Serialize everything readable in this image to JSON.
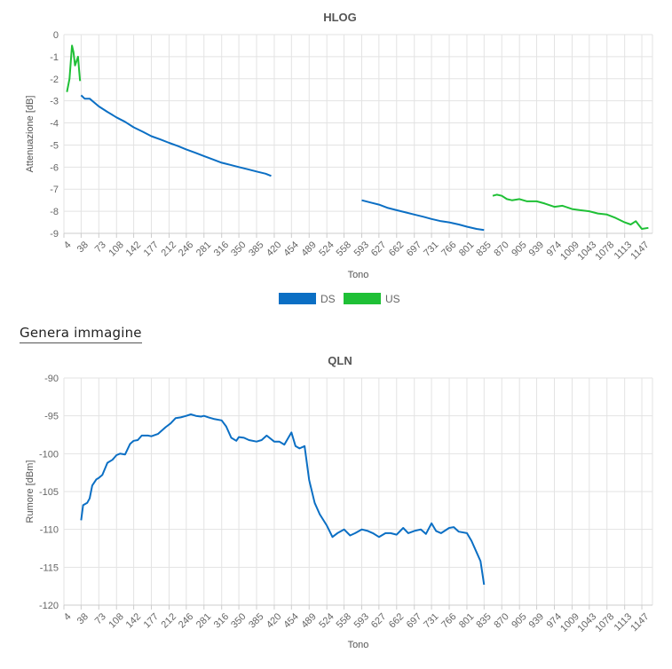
{
  "generate_image_label": "Genera immagine",
  "colors": {
    "ds": "#0b6fc4",
    "us": "#1fc036",
    "grid": "#e3e3e3",
    "text": "#666666"
  },
  "x_ticks": [
    "4",
    "38",
    "73",
    "108",
    "142",
    "177",
    "212",
    "246",
    "281",
    "316",
    "350",
    "385",
    "420",
    "454",
    "489",
    "524",
    "558",
    "593",
    "627",
    "662",
    "697",
    "731",
    "766",
    "801",
    "835",
    "870",
    "905",
    "939",
    "974",
    "1009",
    "1043",
    "1078",
    "1113",
    "1147"
  ],
  "chart_data": [
    {
      "type": "line",
      "title": "HLOG",
      "xlabel": "Tono",
      "ylabel": "Attenuazione [dB]",
      "xlim": [
        4,
        1168
      ],
      "ylim": [
        -9,
        0
      ],
      "yticks": [
        0,
        -1,
        -2,
        -3,
        -4,
        -5,
        -6,
        -7,
        -8,
        -9
      ],
      "legend": "bottom",
      "series": [
        {
          "name": "DS",
          "color": "#0b6fc4",
          "segments": [
            {
              "x": [
                38,
                45,
                55,
                73,
                90,
                108,
                125,
                142,
                160,
                177,
                195,
                212,
                230,
                246,
                264,
                281,
                298,
                316,
                333,
                350,
                368,
                385,
                403,
                414
              ],
              "y": [
                -2.75,
                -2.9,
                -2.9,
                -3.25,
                -3.5,
                -3.75,
                -3.95,
                -4.2,
                -4.4,
                -4.6,
                -4.75,
                -4.9,
                -5.05,
                -5.2,
                -5.35,
                -5.5,
                -5.65,
                -5.8,
                -5.9,
                -6.0,
                -6.1,
                -6.2,
                -6.3,
                -6.4
              ]
            },
            {
              "x": [
                593,
                610,
                627,
                645,
                662,
                680,
                697,
                715,
                731,
                750,
                766,
                785,
                801,
                820,
                835
              ],
              "y": [
                -7.5,
                -7.6,
                -7.7,
                -7.85,
                -7.95,
                -8.05,
                -8.15,
                -8.25,
                -8.35,
                -8.45,
                -8.5,
                -8.6,
                -8.7,
                -8.8,
                -8.85
              ]
            }
          ]
        },
        {
          "name": "US",
          "color": "#1fc036",
          "segments": [
            {
              "x": [
                10,
                15,
                20,
                23,
                26,
                29,
                32,
                34,
                36
              ],
              "y": [
                -2.6,
                -2.0,
                -0.5,
                -0.8,
                -1.4,
                -1.2,
                -1.0,
                -1.6,
                -2.1
              ]
            },
            {
              "x": [
                852,
                860,
                870,
                880,
                890,
                905,
                920,
                939,
                955,
                974,
                990,
                1009,
                1025,
                1043,
                1060,
                1078,
                1095,
                1113,
                1125,
                1135,
                1147,
                1160
              ],
              "y": [
                -7.3,
                -7.25,
                -7.3,
                -7.45,
                -7.5,
                -7.45,
                -7.55,
                -7.55,
                -7.65,
                -7.8,
                -7.75,
                -7.9,
                -7.95,
                -8.0,
                -8.1,
                -8.15,
                -8.3,
                -8.5,
                -8.6,
                -8.45,
                -8.8,
                -8.75
              ]
            }
          ]
        }
      ]
    },
    {
      "type": "line",
      "title": "QLN",
      "xlabel": "Tono",
      "ylabel": "Rumore [dBm]",
      "xlim": [
        4,
        1168
      ],
      "ylim": [
        -120,
        -90
      ],
      "yticks": [
        -90,
        -95,
        -100,
        -105,
        -110,
        -115,
        -120
      ],
      "series": [
        {
          "name": "",
          "color": "#0b6fc4",
          "segments": [
            {
              "x": [
                38,
                42,
                50,
                55,
                60,
                68,
                73,
                80,
                90,
                100,
                108,
                115,
                125,
                135,
                142,
                150,
                158,
                170,
                177,
                190,
                205,
                215,
                225,
                235,
                246,
                255,
                265,
                275,
                281,
                290,
                300,
                316,
                325,
                335,
                345,
                350,
                360,
                370,
                385,
                395,
                405,
                420,
                430,
                440,
                454,
                462,
                470,
                480,
                489,
                500,
                510,
                524,
                535,
                545,
                558,
                570,
                580,
                593,
                605,
                615,
                627,
                640,
                650,
                662,
                675,
                685,
                697,
                710,
                720,
                731,
                740,
                750,
                766,
                775,
                785,
                801,
                810,
                820,
                828,
                835
              ],
              "y": [
                -108.8,
                -106.8,
                -106.5,
                -105.9,
                -104.2,
                -103.4,
                -103.2,
                -102.8,
                -101.2,
                -100.8,
                -100.2,
                -100.0,
                -100.1,
                -98.7,
                -98.3,
                -98.2,
                -97.6,
                -97.6,
                -97.7,
                -97.4,
                -96.5,
                -96.0,
                -95.3,
                -95.2,
                -95.0,
                -94.8,
                -95.0,
                -95.1,
                -95.0,
                -95.2,
                -95.4,
                -95.6,
                -96.4,
                -97.9,
                -98.3,
                -97.8,
                -97.9,
                -98.2,
                -98.4,
                -98.2,
                -97.6,
                -98.4,
                -98.4,
                -98.8,
                -97.2,
                -99.0,
                -99.3,
                -99.0,
                -103.5,
                -106.5,
                -108.0,
                -109.5,
                -111.0,
                -110.5,
                -110.0,
                -110.8,
                -110.5,
                -110.0,
                -110.2,
                -110.5,
                -111.0,
                -110.5,
                -110.5,
                -110.7,
                -109.8,
                -110.5,
                -110.2,
                -110.0,
                -110.6,
                -109.2,
                -110.2,
                -110.5,
                -109.8,
                -109.7,
                -110.3,
                -110.5,
                -111.5,
                -113.0,
                -114.2,
                -117.3
              ]
            }
          ]
        }
      ]
    }
  ]
}
